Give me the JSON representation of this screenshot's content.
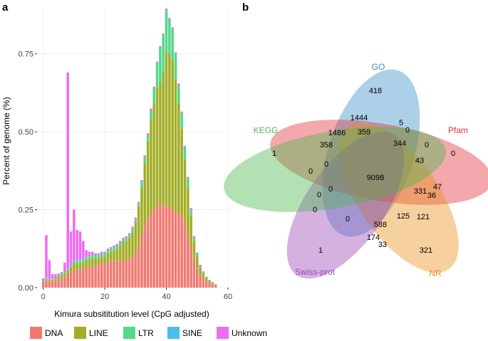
{
  "chart_data": [
    {
      "type": "bar",
      "stacked": true,
      "panel_label": "a",
      "title": "",
      "xlabel": "Kimura subsititution level (CpG adjusted)",
      "ylabel": "Percent of genome (%)",
      "xlim": [
        -2,
        60
      ],
      "ylim": [
        0,
        0.9
      ],
      "x_ticks": [
        0,
        20,
        40,
        60
      ],
      "x_tick_labels": [
        "0",
        "20",
        "40",
        "60"
      ],
      "y_ticks": [
        0,
        0.25,
        0.5,
        0.75
      ],
      "y_tick_labels": [
        "0.00",
        "0.25",
        "0.50",
        "0.75"
      ],
      "x": [
        0,
        1,
        2,
        3,
        4,
        5,
        6,
        7,
        8,
        9,
        10,
        11,
        12,
        13,
        14,
        15,
        16,
        17,
        18,
        19,
        20,
        21,
        22,
        23,
        24,
        25,
        26,
        27,
        28,
        29,
        30,
        31,
        32,
        33,
        34,
        35,
        36,
        37,
        38,
        39,
        40,
        41,
        42,
        43,
        44,
        45,
        46,
        47,
        48,
        49,
        50,
        51,
        52,
        53,
        54,
        55,
        56
      ],
      "series": [
        {
          "name": "DNA",
          "color": "#F07A72",
          "values": [
            0.015,
            0.02,
            0.02,
            0.02,
            0.02,
            0.025,
            0.03,
            0.035,
            0.04,
            0.05,
            0.06,
            0.055,
            0.06,
            0.06,
            0.065,
            0.065,
            0.07,
            0.07,
            0.075,
            0.08,
            0.08,
            0.08,
            0.085,
            0.085,
            0.085,
            0.085,
            0.085,
            0.09,
            0.09,
            0.1,
            0.11,
            0.13,
            0.17,
            0.2,
            0.22,
            0.24,
            0.25,
            0.26,
            0.27,
            0.26,
            0.26,
            0.26,
            0.25,
            0.24,
            0.24,
            0.23,
            0.21,
            0.17,
            0.13,
            0.09,
            0.06,
            0.04,
            0.03,
            0.02,
            0.015,
            0.01,
            0.005
          ]
        },
        {
          "name": "LINE",
          "color": "#A3AD27",
          "values": [
            0.005,
            0.005,
            0.005,
            0.005,
            0.005,
            0.01,
            0.01,
            0.01,
            0.015,
            0.015,
            0.02,
            0.02,
            0.02,
            0.02,
            0.025,
            0.025,
            0.025,
            0.025,
            0.02,
            0.02,
            0.02,
            0.03,
            0.03,
            0.035,
            0.04,
            0.05,
            0.06,
            0.06,
            0.07,
            0.08,
            0.1,
            0.13,
            0.15,
            0.2,
            0.25,
            0.3,
            0.34,
            0.38,
            0.39,
            0.43,
            0.5,
            0.49,
            0.48,
            0.43,
            0.35,
            0.28,
            0.2,
            0.15,
            0.1,
            0.06,
            0.04,
            0.025,
            0.015,
            0.01,
            0.005,
            0.005,
            0.003
          ]
        },
        {
          "name": "LTR",
          "color": "#52D98A",
          "values": [
            0.002,
            0.003,
            0.003,
            0.003,
            0.003,
            0.005,
            0.005,
            0.005,
            0.005,
            0.005,
            0.01,
            0.01,
            0.01,
            0.01,
            0.01,
            0.01,
            0.01,
            0.01,
            0.01,
            0.01,
            0.01,
            0.01,
            0.01,
            0.01,
            0.01,
            0.01,
            0.01,
            0.01,
            0.01,
            0.01,
            0.01,
            0.01,
            0.02,
            0.02,
            0.02,
            0.03,
            0.05,
            0.08,
            0.11,
            0.12,
            0.13,
            0.11,
            0.1,
            0.08,
            0.06,
            0.05,
            0.04,
            0.03,
            0.02,
            0.01,
            0.01,
            0.005,
            0.005,
            0.003,
            0.003,
            0.002,
            0.002
          ]
        },
        {
          "name": "SINE",
          "color": "#4CBEEB",
          "values": [
            0,
            0,
            0,
            0,
            0,
            0,
            0,
            0,
            0,
            0,
            0,
            0,
            0,
            0,
            0,
            0,
            0,
            0,
            0,
            0,
            0,
            0,
            0,
            0,
            0,
            0,
            0,
            0,
            0,
            0,
            0,
            0,
            0,
            0,
            0,
            0,
            0,
            0,
            0,
            0,
            0,
            0,
            0,
            0,
            0,
            0,
            0,
            0,
            0,
            0,
            0,
            0,
            0,
            0,
            0,
            0,
            0
          ]
        },
        {
          "name": "Unknown",
          "color": "#EC6CF2",
          "values": [
            0.008,
            0.14,
            0.06,
            0.015,
            0.015,
            0.005,
            0.005,
            0.03,
            0.63,
            0.11,
            0.16,
            0.1,
            0.09,
            0.06,
            0.02,
            0.015,
            0.01,
            0.005,
            0.005,
            0.005,
            0.005,
            0.005,
            0.005,
            0.005,
            0.005,
            0.005,
            0.005,
            0.005,
            0.005,
            0.005,
            0.005,
            0.005,
            0.005,
            0.005,
            0.005,
            0.005,
            0.005,
            0.005,
            0.005,
            0.005,
            0.005,
            0.005,
            0.005,
            0.005,
            0.005,
            0.005,
            0.005,
            0.005,
            0.005,
            0.005,
            0.003,
            0.003,
            0.002,
            0.002,
            0.002,
            0.001,
            0.001
          ]
        }
      ],
      "legend": {
        "position": "bottom",
        "entries": [
          "DNA",
          "LINE",
          "LTR",
          "SINE",
          "Unknown"
        ]
      }
    },
    {
      "type": "venn",
      "panel_label": "b",
      "sets": [
        {
          "name": "GO",
          "color": "#3A8FC7"
        },
        {
          "name": "Pfam",
          "color": "#E0303A"
        },
        {
          "name": "NR",
          "color": "#E98F17"
        },
        {
          "name": "Swiss-prot",
          "color": "#9A46B4"
        },
        {
          "name": "KEGG",
          "color": "#4CB84C"
        }
      ],
      "region_labels": [
        "418",
        "1444",
        "5",
        "0",
        "1486",
        "359",
        "358",
        "344",
        "0",
        "43",
        "0",
        "1",
        "0",
        "0",
        "9098",
        "331",
        "47",
        "36",
        "0",
        "0",
        "0",
        "0",
        "588",
        "125",
        "121",
        "174",
        "33",
        "1",
        "321"
      ]
    }
  ]
}
